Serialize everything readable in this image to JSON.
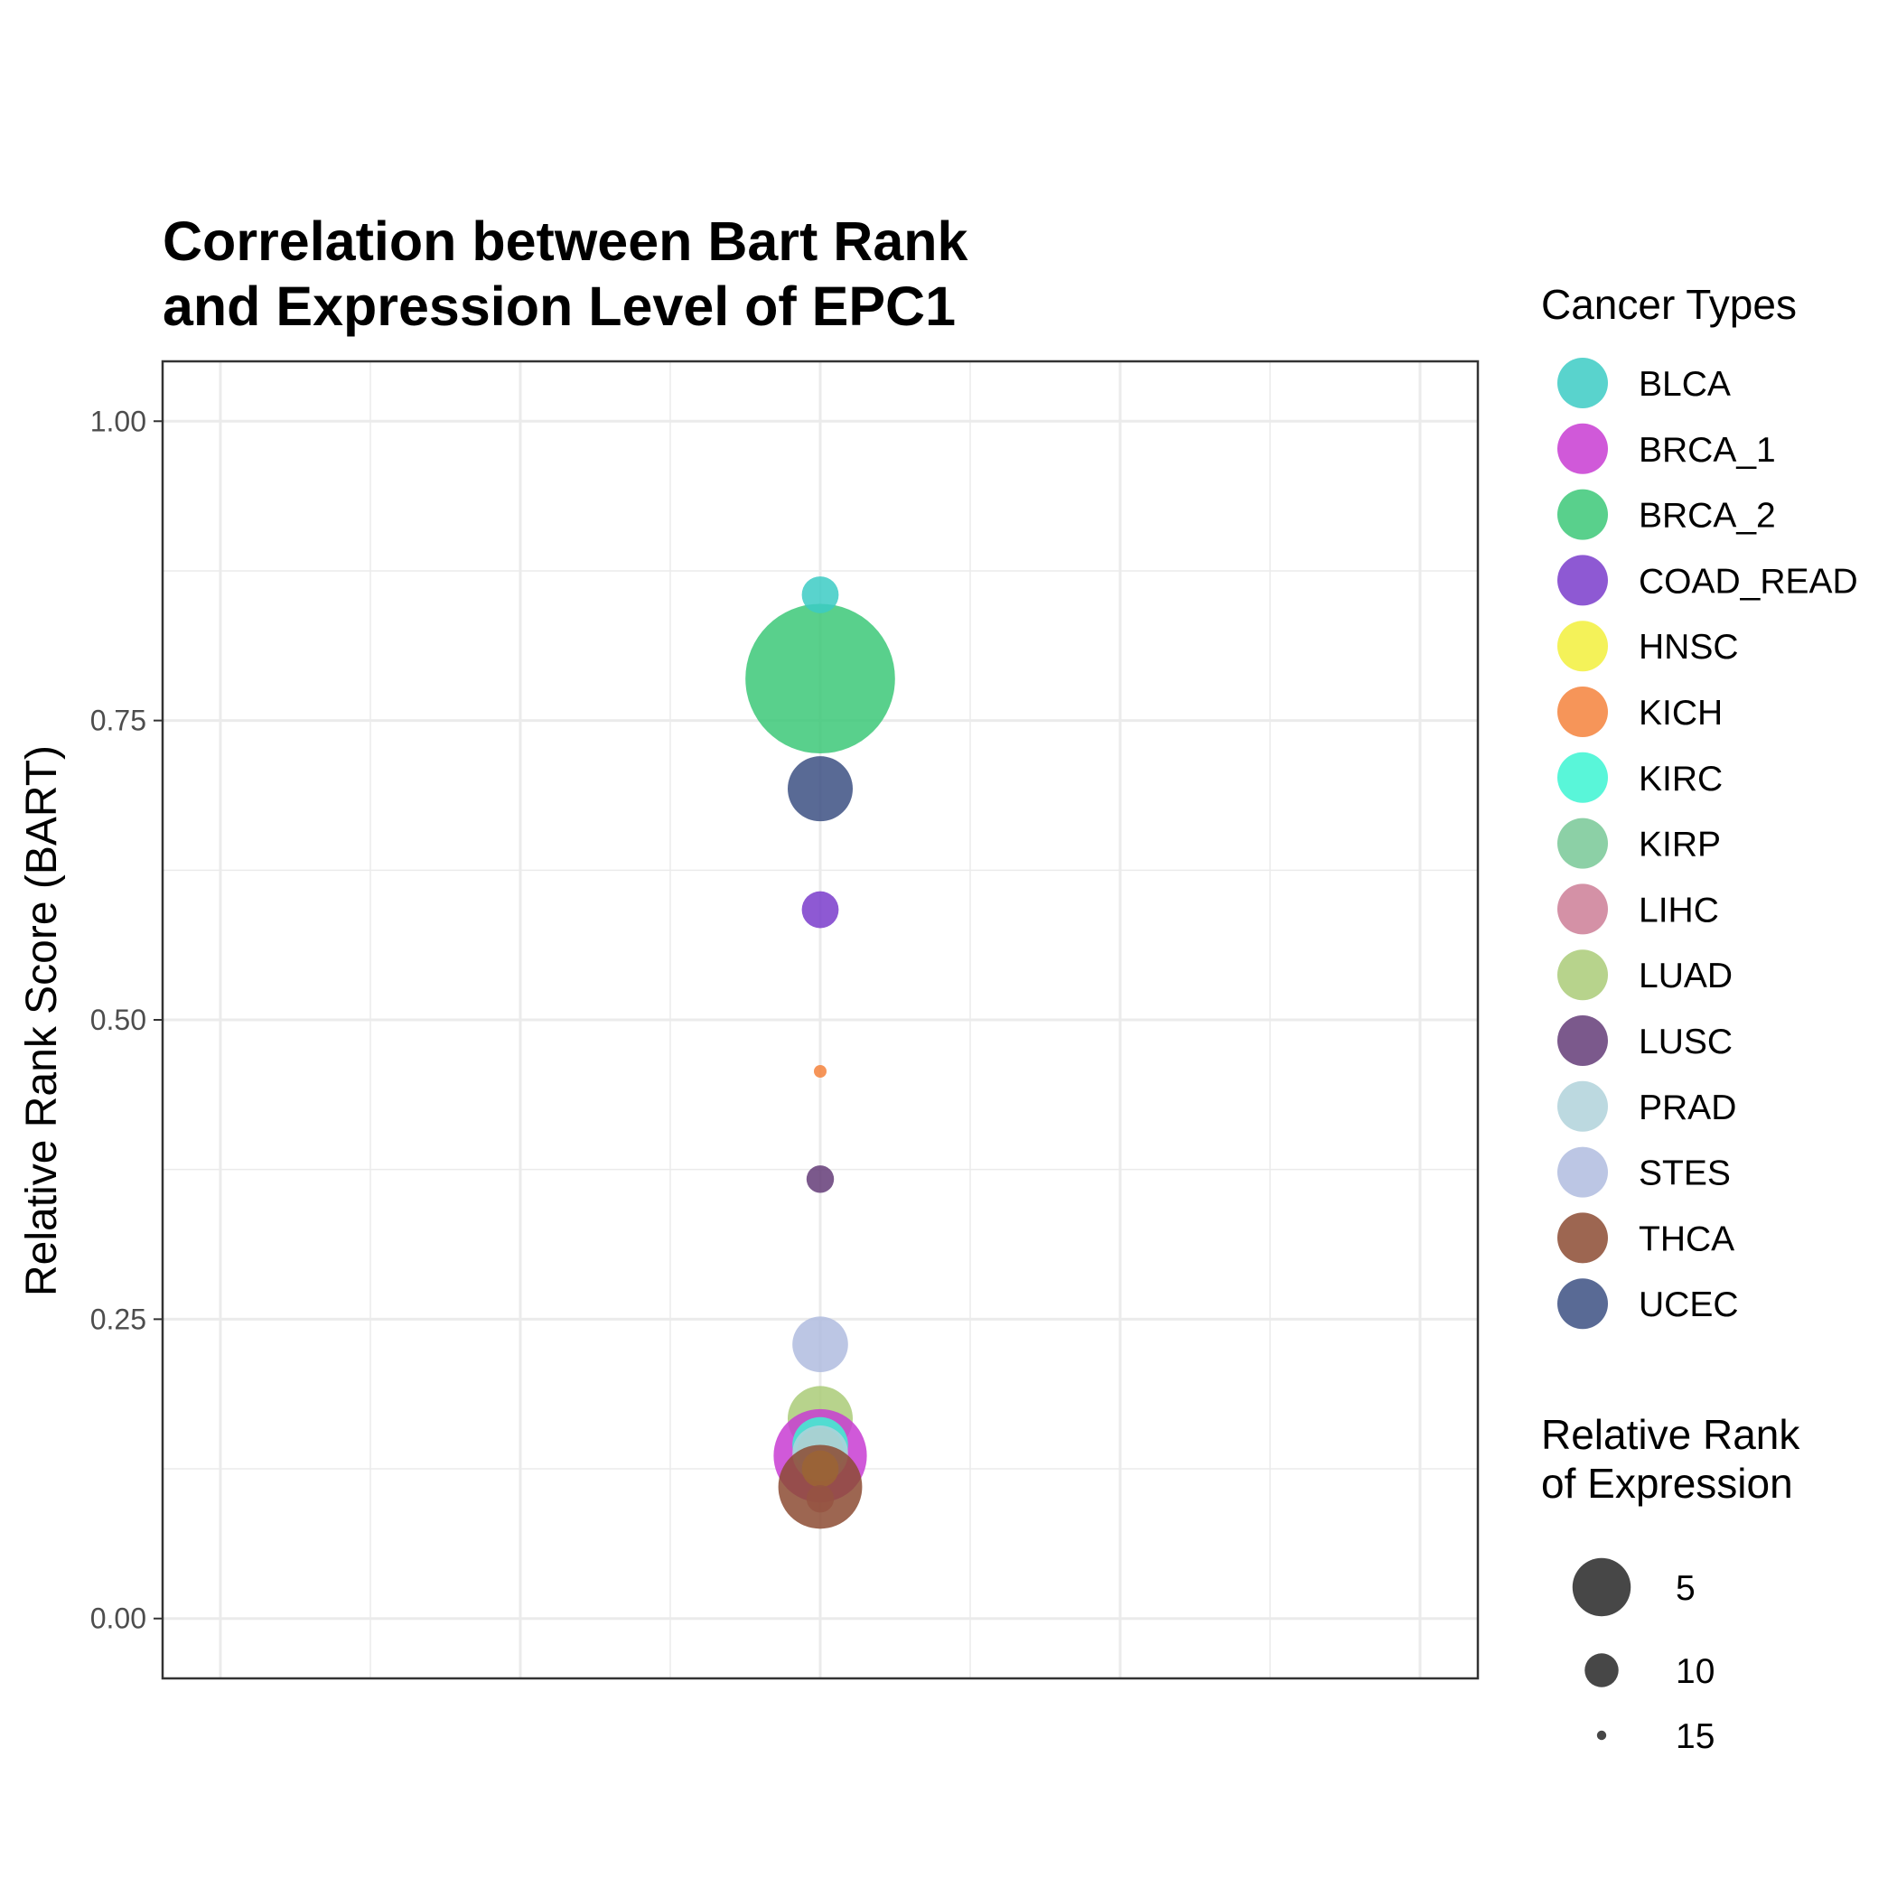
{
  "chart_data": {
    "type": "scatter",
    "title_lines": [
      "Correlation between Bart Rank",
      "and Expression Level of EPC1"
    ],
    "xlabel": "",
    "ylabel": "Relative Rank Score (BART)",
    "ylim": [
      -0.05,
      1.05
    ],
    "yticks": [
      "0.00",
      "0.25",
      "0.50",
      "0.75",
      "1.00"
    ],
    "ytick_values": [
      0.0,
      0.25,
      0.5,
      0.75,
      1.0
    ],
    "grid": true,
    "legend_position": "right",
    "color_legend": {
      "title": "Cancer Types",
      "entries": [
        {
          "name": "BLCA",
          "color": "#3CCBC4"
        },
        {
          "name": "BRCA_1",
          "color": "#C83CD2"
        },
        {
          "name": "BRCA_2",
          "color": "#3CC878"
        },
        {
          "name": "COAD_READ",
          "color": "#7A3CCB"
        },
        {
          "name": "HNSC",
          "color": "#F2F03C"
        },
        {
          "name": "KICH",
          "color": "#F5823C"
        },
        {
          "name": "KIRC",
          "color": "#3CF5D2"
        },
        {
          "name": "KIRP",
          "color": "#78C896"
        },
        {
          "name": "LIHC",
          "color": "#CD7E96"
        },
        {
          "name": "LUAD",
          "color": "#AACB78"
        },
        {
          "name": "LUSC",
          "color": "#643C78"
        },
        {
          "name": "PRAD",
          "color": "#B0D2DA"
        },
        {
          "name": "STES",
          "color": "#B0BCDF"
        },
        {
          "name": "THCA",
          "color": "#8C4B32"
        },
        {
          "name": "UCEC",
          "color": "#3C5082"
        }
      ]
    },
    "size_legend": {
      "title_lines": [
        "Relative Rank",
        "of Expression"
      ],
      "entries": [
        {
          "label": "5",
          "value": 5
        },
        {
          "label": "10",
          "value": 10
        },
        {
          "label": "15",
          "value": 15
        }
      ]
    },
    "points": [
      {
        "name": "BRCA_2",
        "x": 0,
        "y": 0.785,
        "size": 1
      },
      {
        "name": "BLCA",
        "x": 0,
        "y": 0.855,
        "size": 13
      },
      {
        "name": "UCEC",
        "x": 0,
        "y": 0.693,
        "size": 10
      },
      {
        "name": "COAD_READ",
        "x": 0,
        "y": 0.592,
        "size": 13
      },
      {
        "name": "KICH",
        "x": 0,
        "y": 0.457,
        "size": 16
      },
      {
        "name": "LUSC",
        "x": 0,
        "y": 0.367,
        "size": 14
      },
      {
        "name": "STES",
        "x": 0,
        "y": 0.229,
        "size": 11
      },
      {
        "name": "LUAD",
        "x": 0,
        "y": 0.167,
        "size": 10
      },
      {
        "name": "BRCA_1",
        "x": 0,
        "y": 0.136,
        "size": 7
      },
      {
        "name": "KIRC",
        "x": 0,
        "y": 0.145,
        "size": 11
      },
      {
        "name": "KIRP",
        "x": 0,
        "y": 0.14,
        "size": 12
      },
      {
        "name": "PRAD",
        "x": 0,
        "y": 0.138,
        "size": 11
      },
      {
        "name": "HNSC",
        "x": 0,
        "y": 0.125,
        "size": 13
      },
      {
        "name": "LIHC",
        "x": 0,
        "y": 0.1,
        "size": 14
      },
      {
        "name": "THCA",
        "x": 0,
        "y": 0.11,
        "size": 8
      }
    ]
  }
}
